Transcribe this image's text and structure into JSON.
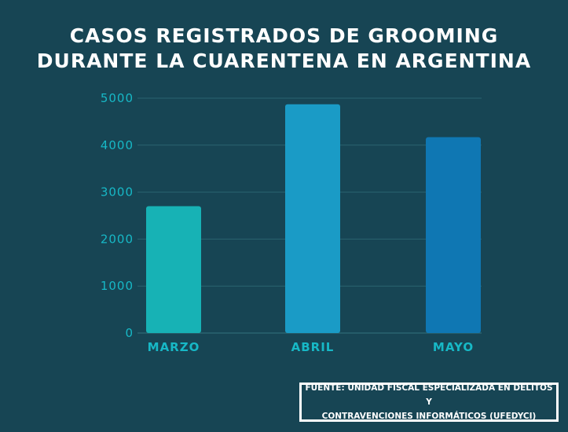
{
  "chart_data": {
    "type": "bar",
    "title_lines": [
      "CASOS REGISTRADOS DE GROOMING",
      "DURANTE LA CUARENTENA EN ARGENTINA"
    ],
    "categories": [
      "MARZO",
      "ABRIL",
      "MAYO"
    ],
    "values": [
      2700,
      4870,
      4170
    ],
    "yticks": [
      "0",
      "1000",
      "2000",
      "3000",
      "4000",
      "5000"
    ],
    "ylim": [
      0,
      5000
    ],
    "grid": true,
    "colors": [
      "#17b2b5",
      "#1a9bc6",
      "#0f77b3"
    ],
    "grid_color": "#2a6470",
    "axis_text_color": "#17b8c6"
  },
  "source": {
    "lines": [
      "FUENTE: UNIDAD FISCAL ESPECIALIZADA EN DELITOS Y",
      "CONTRAVENCIONES INFORMÁTICOS (UFEDYCI)"
    ]
  }
}
